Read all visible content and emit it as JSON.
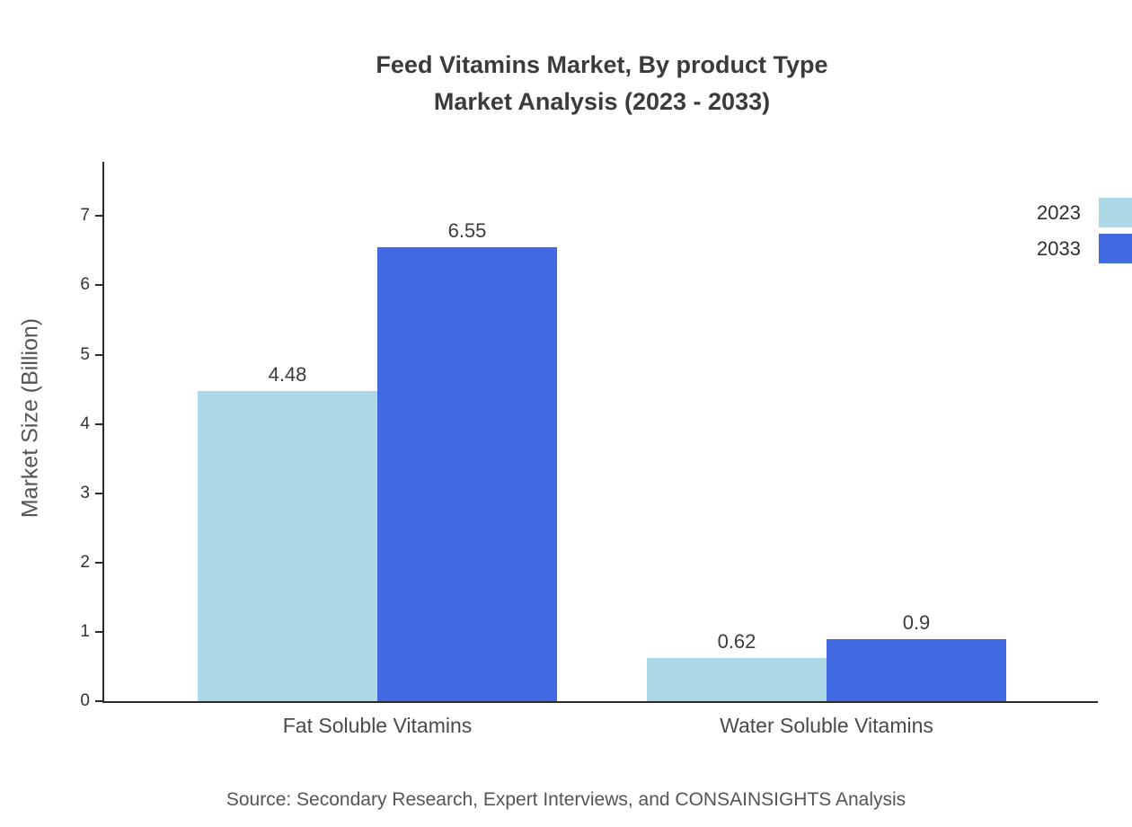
{
  "title": {
    "line1": "Feed Vitamins Market, By product Type",
    "line2": "Market Analysis (2023 - 2033)"
  },
  "ylabel": "Market Size (Billion)",
  "source": "Source: Secondary Research, Expert Interviews, and CONSAINSIGHTS Analysis",
  "chart_data": {
    "type": "bar",
    "title": "Feed Vitamins Market, By product Type Market Analysis (2023 - 2033)",
    "categories": [
      "Fat Soluble Vitamins",
      "Water Soluble Vitamins"
    ],
    "series": [
      {
        "name": "2023",
        "color": "#ADD8E6",
        "values": [
          4.48,
          0.62
        ]
      },
      {
        "name": "2033",
        "color": "#4169E1",
        "values": [
          6.55,
          0.9
        ]
      }
    ],
    "value_labels": [
      [
        "4.48",
        "0.62"
      ],
      [
        "6.55",
        "0.9"
      ]
    ],
    "xlabel": "",
    "ylabel": "Market Size (Billion)",
    "ylim": [
      0,
      7
    ],
    "yticks": [
      0,
      1,
      2,
      3,
      4,
      5,
      6,
      7
    ],
    "grid": false,
    "legend_position": "top-right"
  }
}
